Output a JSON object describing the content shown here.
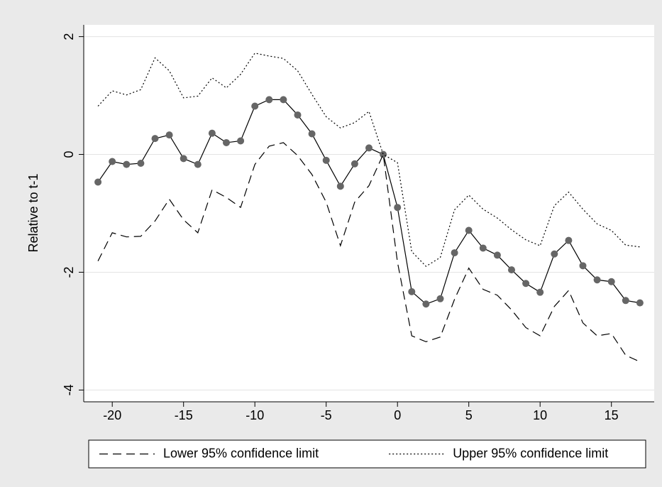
{
  "chart_data": {
    "type": "line",
    "y_label": "Relative to t-1",
    "x": [
      -21,
      -20,
      -19,
      -18,
      -17,
      -16,
      -15,
      -14,
      -13,
      -12,
      -11,
      -10,
      -9,
      -8,
      -7,
      -6,
      -5,
      -4,
      -3,
      -2,
      -1,
      0,
      1,
      2,
      3,
      4,
      5,
      6,
      7,
      8,
      9,
      10,
      11,
      12,
      13,
      14,
      15,
      16,
      17
    ],
    "series": [
      {
        "color": "#000000",
        "marker_color": "#666666",
        "style": "solid",
        "markers": true,
        "values": [
          -0.47,
          -0.12,
          -0.17,
          -0.15,
          0.27,
          0.33,
          -0.07,
          -0.17,
          0.36,
          0.2,
          0.23,
          0.82,
          0.93,
          0.93,
          0.67,
          0.35,
          -0.1,
          -0.54,
          -0.16,
          0.11,
          0,
          -0.9,
          -2.33,
          -2.54,
          -2.45,
          -1.67,
          -1.29,
          -1.59,
          -1.71,
          -1.96,
          -2.19,
          -2.34,
          -1.69,
          -1.46,
          -1.89,
          -2.13,
          -2.16,
          -2.48,
          -2.52
        ]
      },
      {
        "name": "Lower 95% confidence limit",
        "color": "#000000",
        "style": "dashed",
        "markers": false,
        "values": [
          -1.81,
          -1.33,
          -1.4,
          -1.39,
          -1.13,
          -0.76,
          -1.11,
          -1.33,
          -0.6,
          -0.73,
          -0.9,
          -0.17,
          0.14,
          0.2,
          -0.02,
          -0.34,
          -0.81,
          -1.55,
          -0.81,
          -0.53,
          0,
          -1.83,
          -3.08,
          -3.18,
          -3.1,
          -2.46,
          -1.93,
          -2.29,
          -2.39,
          -2.64,
          -2.94,
          -3.08,
          -2.58,
          -2.31,
          -2.86,
          -3.08,
          -3.04,
          -3.41,
          -3.52
        ]
      },
      {
        "name": "Upper 95% confidence limit",
        "color": "#000000",
        "style": "dotted",
        "markers": false,
        "values": [
          0.82,
          1.08,
          1.01,
          1.1,
          1.64,
          1.42,
          0.96,
          0.99,
          1.3,
          1.13,
          1.36,
          1.72,
          1.67,
          1.63,
          1.42,
          1.02,
          0.64,
          0.45,
          0.54,
          0.73,
          0,
          -0.14,
          -1.65,
          -1.9,
          -1.75,
          -0.94,
          -0.69,
          -0.93,
          -1.08,
          -1.28,
          -1.45,
          -1.55,
          -0.87,
          -0.64,
          -0.93,
          -1.18,
          -1.29,
          -1.54,
          -1.57
        ]
      }
    ],
    "xlim": [
      -22,
      18
    ],
    "xticks": [
      -20,
      -15,
      -10,
      -5,
      0,
      5,
      10,
      15
    ],
    "ylim": [
      -4.2,
      2.2
    ],
    "yticks": [
      -4,
      -2,
      0,
      2
    ],
    "grid": true,
    "legend_position": "bottom"
  }
}
